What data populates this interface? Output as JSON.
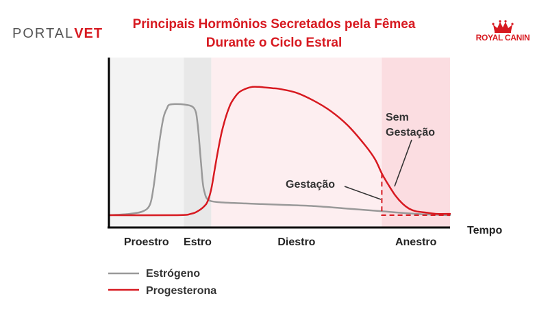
{
  "header": {
    "title_line1": "Principais Hormônios Secretados pela Fêmea",
    "title_line2": "Durante o Ciclo Estral",
    "logo_left_a": "PORTAL",
    "logo_left_b": "VET",
    "logo_right": "ROYAL CANIN"
  },
  "colors": {
    "estrogen": "#999999",
    "progesterone": "#d71920",
    "accent": "#d71920"
  },
  "chart_data": {
    "type": "line",
    "title": "Principais Hormônios Secretados pela Fêmea Durante o Ciclo Estral",
    "xlabel": "Tempo",
    "ylabel": "",
    "xlim": [
      0,
      100
    ],
    "ylim": [
      0,
      100
    ],
    "phases": [
      {
        "name": "Proestro",
        "start": 0,
        "end": 22,
        "color": "#f3f3f3"
      },
      {
        "name": "Estro",
        "start": 22,
        "end": 30,
        "color": "#e8e8e8"
      },
      {
        "name": "Diestro",
        "start": 30,
        "end": 80,
        "color": "#fdeef0"
      },
      {
        "name": "Anestro",
        "start": 80,
        "end": 100,
        "color": "#fbdde1"
      }
    ],
    "series": [
      {
        "name": "Estrógeno",
        "color": "#999999",
        "x": [
          0,
          6,
          10,
          12,
          13,
          14,
          15,
          16,
          17,
          18,
          22,
          25,
          26,
          27,
          27.5,
          28,
          29,
          32,
          40,
          50,
          60,
          70,
          80,
          90,
          100
        ],
        "y": [
          0,
          1,
          3,
          8,
          20,
          40,
          60,
          75,
          82,
          85,
          85,
          82,
          70,
          40,
          25,
          18,
          12,
          10,
          9,
          8,
          7,
          5,
          3,
          1,
          0
        ]
      },
      {
        "name": "Progesterona",
        "color": "#d71920",
        "x": [
          0,
          20,
          24,
          26,
          28,
          29,
          30,
          31,
          32,
          33,
          34,
          35,
          36,
          38,
          40,
          42,
          44,
          46,
          48,
          50,
          55,
          60,
          65,
          70,
          75,
          78,
          80,
          82,
          84,
          86,
          88,
          90,
          93,
          96,
          100
        ],
        "y": [
          0,
          0,
          1,
          3,
          7,
          11,
          20,
          35,
          50,
          63,
          73,
          81,
          87,
          94,
          97,
          98.5,
          98.5,
          98,
          97.5,
          97,
          94,
          88,
          80,
          69,
          54,
          43,
          32,
          23,
          15,
          9,
          5,
          3,
          2,
          1,
          1
        ]
      }
    ],
    "gestation_branch": {
      "x": [
        80,
        80,
        100
      ],
      "y": [
        32,
        0,
        0
      ]
    },
    "annotations": [
      {
        "text": "Gestação",
        "target": [
          80,
          8
        ]
      },
      {
        "text_line1": "Sem",
        "text_line2": "Gestação",
        "target": [
          84,
          15
        ]
      }
    ],
    "legend": {
      "position": "bottom-left",
      "entries": [
        {
          "label": "Estrógeno",
          "color": "#999999"
        },
        {
          "label": "Progesterona",
          "color": "#d71920"
        }
      ]
    },
    "grid": false
  }
}
